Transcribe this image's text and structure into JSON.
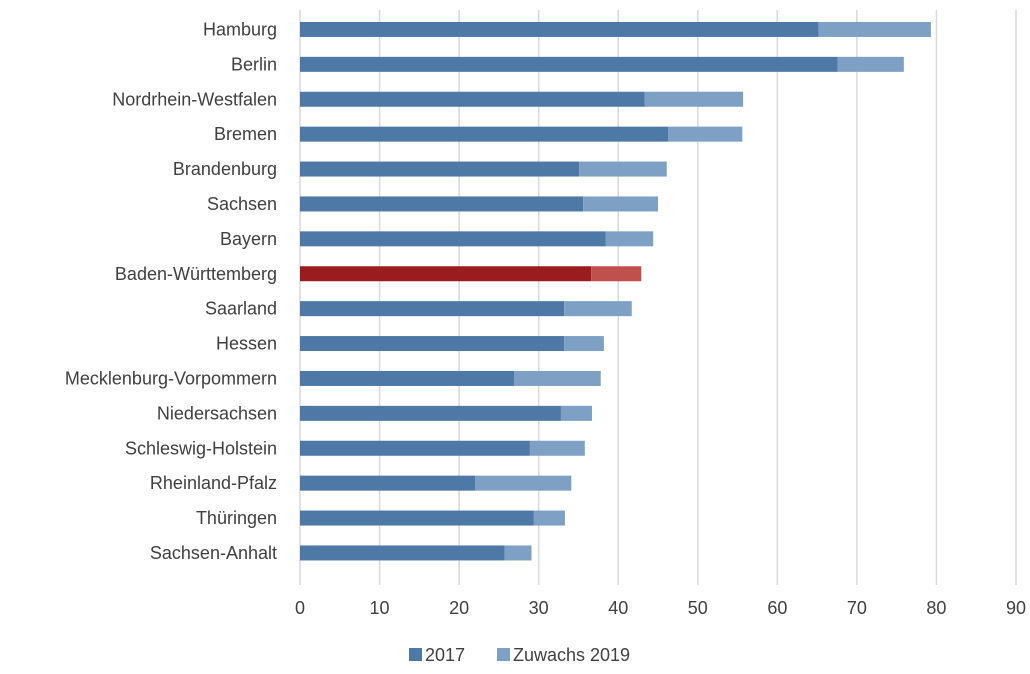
{
  "chart_data": {
    "type": "bar",
    "orientation": "horizontal",
    "stacked": true,
    "categories": [
      "Hamburg",
      "Berlin",
      "Nordrhein-Westfalen",
      "Bremen",
      "Brandenburg",
      "Sachsen",
      "Bayern",
      "Baden-Württemberg",
      "Saarland",
      "Hessen",
      "Mecklenburg-Vorpommern",
      "Niedersachsen",
      "Schleswig-Holstein",
      "Rheinland-Pfalz",
      "Thüringen",
      "Sachsen-Anhalt"
    ],
    "series": [
      {
        "name": "2017",
        "color": "#4e79a7",
        "values": [
          65.2,
          67.6,
          43.3,
          46.3,
          35.1,
          35.6,
          38.4,
          36.6,
          33.2,
          33.2,
          26.9,
          32.8,
          28.9,
          22.0,
          29.4,
          25.7
        ]
      },
      {
        "name": "Zuwachs 2019",
        "color": "#7da0c4",
        "values": [
          14.1,
          8.3,
          12.4,
          9.3,
          11.0,
          9.4,
          6.0,
          6.3,
          8.5,
          5.0,
          10.9,
          3.9,
          6.9,
          12.1,
          3.9,
          3.4
        ]
      }
    ],
    "highlight": {
      "category": "Baden-Württemberg",
      "colors": [
        "#9b1c1f",
        "#c0504d"
      ]
    },
    "xlim": [
      0,
      90
    ],
    "xticks": [
      0,
      10,
      20,
      30,
      40,
      50,
      60,
      70,
      80,
      90
    ],
    "grid": true,
    "legend_position": "bottom",
    "title": "",
    "xlabel": "",
    "ylabel": ""
  }
}
